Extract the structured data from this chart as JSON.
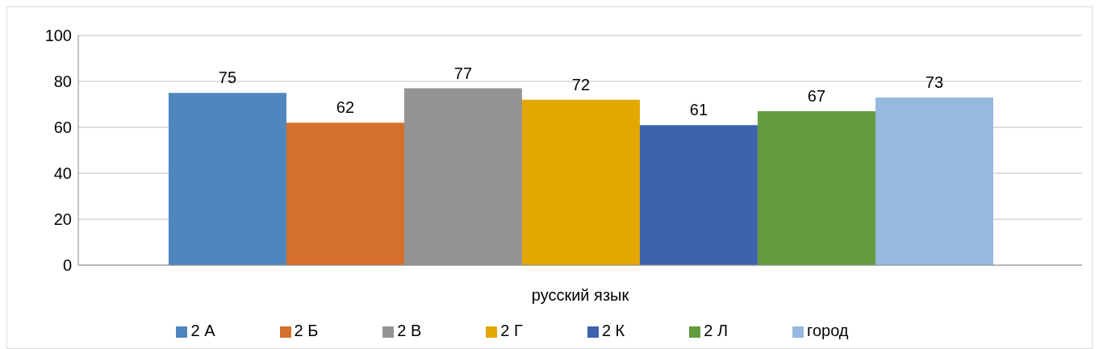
{
  "chart_data": {
    "type": "bar",
    "categories": [
      "русский язык"
    ],
    "series": [
      {
        "name": "2 А",
        "color": "#4f86bd",
        "values": [
          75
        ]
      },
      {
        "name": "2 Б",
        "color": "#d56f2c",
        "values": [
          62
        ]
      },
      {
        "name": "2 В",
        "color": "#949494",
        "values": [
          77
        ]
      },
      {
        "name": "2 Г",
        "color": "#e2a800",
        "values": [
          72
        ]
      },
      {
        "name": "2 К",
        "color": "#3d63ad",
        "values": [
          61
        ]
      },
      {
        "name": "2 Л",
        "color": "#639b3f",
        "values": [
          67
        ]
      },
      {
        "name": "город",
        "color": "#97b8df",
        "values": [
          73
        ]
      }
    ],
    "ylim": [
      0,
      100
    ],
    "yticks": [
      0,
      20,
      40,
      60,
      80,
      100
    ],
    "grid": "y",
    "legend": "bottom",
    "data_labels": true
  }
}
